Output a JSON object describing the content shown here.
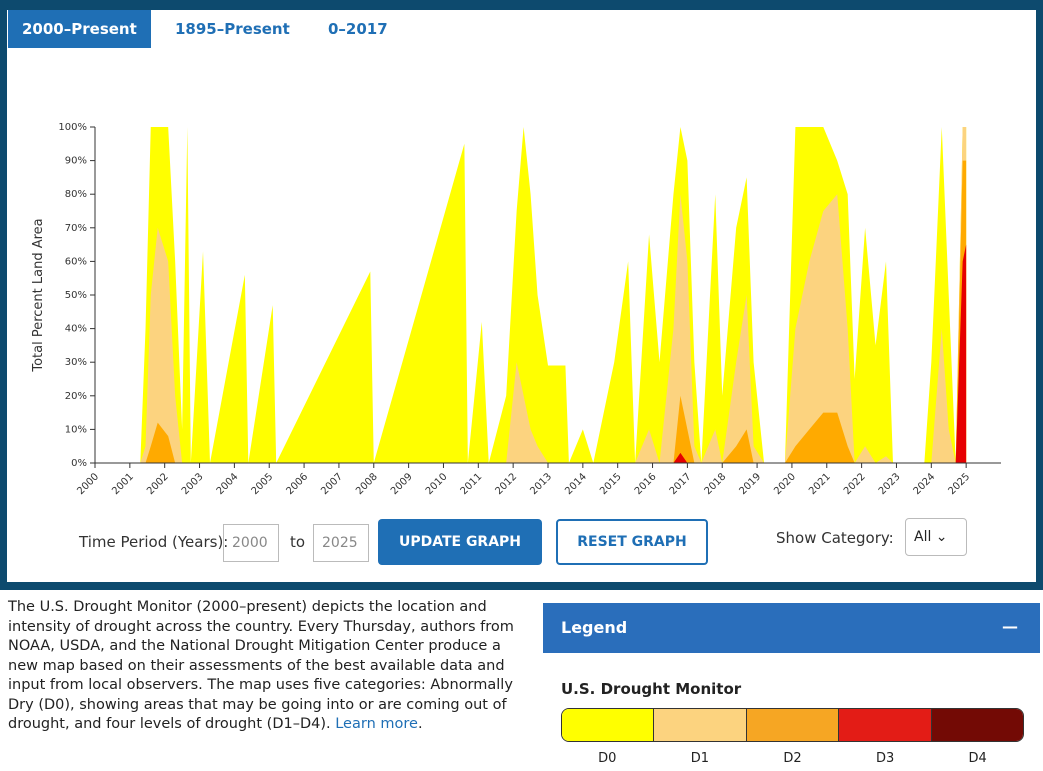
{
  "tabs": [
    "2000–Present",
    "1895–Present",
    "0–2017"
  ],
  "chart_data": {
    "type": "area",
    "y_label": "Total Percent Land Area",
    "xlim": [
      2000,
      2026
    ],
    "xticks": [
      2000,
      2001,
      2002,
      2003,
      2004,
      2005,
      2006,
      2007,
      2008,
      2009,
      2010,
      2011,
      2012,
      2013,
      2014,
      2015,
      2016,
      2017,
      2018,
      2019,
      2020,
      2021,
      2022,
      2023,
      2024,
      2025
    ],
    "ylim": [
      0,
      100
    ],
    "yticks": [
      {
        "value": 0,
        "label": "0%"
      },
      {
        "value": 10,
        "label": "10%"
      },
      {
        "value": 20,
        "label": "20%"
      },
      {
        "value": 30,
        "label": "30%"
      },
      {
        "value": 40,
        "label": "40%"
      },
      {
        "value": 50,
        "label": "50%"
      },
      {
        "value": 60,
        "label": "60%"
      },
      {
        "value": 70,
        "label": "70%"
      },
      {
        "value": 80,
        "label": "80%"
      },
      {
        "value": 90,
        "label": "90%"
      },
      {
        "value": 100,
        "label": "100%"
      }
    ],
    "x": [
      2000.0,
      2001.3,
      2001.45,
      2001.6,
      2001.8,
      2002.1,
      2002.3,
      2002.5,
      2002.65,
      2002.75,
      2003.1,
      2003.3,
      2004.3,
      2004.4,
      2005.1,
      2005.2,
      2007.9,
      2008.0,
      2010.6,
      2010.7,
      2011.1,
      2011.3,
      2011.8,
      2012.1,
      2012.3,
      2012.5,
      2012.7,
      2013.0,
      2013.5,
      2013.6,
      2014.0,
      2014.3,
      2014.9,
      2015.3,
      2015.5,
      2015.9,
      2016.2,
      2016.6,
      2016.8,
      2017.0,
      2017.2,
      2017.4,
      2017.8,
      2018.0,
      2018.4,
      2018.7,
      2018.9,
      2019.2,
      2019.8,
      2020.1,
      2020.5,
      2020.9,
      2021.3,
      2021.6,
      2021.8,
      2022.1,
      2022.4,
      2022.7,
      2022.9,
      2023.8,
      2024.0,
      2024.3,
      2024.5,
      2024.7,
      2024.9,
      2025.0
    ],
    "series": [
      {
        "name": "D0",
        "color": "#ffff00",
        "values": [
          0,
          0,
          40,
          100,
          100,
          100,
          60,
          10,
          100,
          0,
          63,
          0,
          56,
          0,
          47,
          0,
          57,
          0,
          95,
          0,
          42,
          0,
          20,
          75,
          100,
          80,
          50,
          29,
          29,
          0,
          10,
          0,
          30,
          60,
          0,
          68,
          30,
          80,
          100,
          90,
          30,
          0,
          80,
          20,
          70,
          85,
          30,
          0,
          0,
          100,
          100,
          100,
          90,
          80,
          25,
          70,
          35,
          60,
          0,
          0,
          30,
          100,
          50,
          0,
          100,
          100
        ]
      },
      {
        "name": "D1",
        "color": "#fcd37f",
        "values": [
          0,
          0,
          5,
          50,
          70,
          60,
          20,
          0,
          0,
          0,
          0,
          0,
          0,
          0,
          0,
          0,
          0,
          0,
          0,
          0,
          0,
          0,
          0,
          30,
          20,
          10,
          5,
          0,
          0,
          0,
          0,
          0,
          0,
          0,
          0,
          10,
          0,
          40,
          80,
          60,
          5,
          0,
          10,
          0,
          30,
          50,
          5,
          0,
          0,
          40,
          60,
          75,
          80,
          40,
          0,
          5,
          0,
          2,
          0,
          0,
          0,
          40,
          10,
          0,
          100,
          100
        ]
      },
      {
        "name": "D2",
        "color": "#ffaa00",
        "values": [
          0,
          0,
          0,
          5,
          12,
          8,
          0,
          0,
          0,
          0,
          0,
          0,
          0,
          0,
          0,
          0,
          0,
          0,
          0,
          0,
          0,
          0,
          0,
          0,
          0,
          0,
          0,
          0,
          0,
          0,
          0,
          0,
          0,
          0,
          0,
          0,
          0,
          0,
          20,
          10,
          0,
          0,
          0,
          0,
          5,
          10,
          0,
          0,
          0,
          5,
          10,
          15,
          15,
          5,
          0,
          0,
          0,
          0,
          0,
          0,
          0,
          0,
          0,
          0,
          90,
          90
        ]
      },
      {
        "name": "D3",
        "color": "#e60000",
        "values": [
          0,
          0,
          0,
          0,
          0,
          0,
          0,
          0,
          0,
          0,
          0,
          0,
          0,
          0,
          0,
          0,
          0,
          0,
          0,
          0,
          0,
          0,
          0,
          0,
          0,
          0,
          0,
          0,
          0,
          0,
          0,
          0,
          0,
          0,
          0,
          0,
          0,
          0,
          3,
          0,
          0,
          0,
          0,
          0,
          0,
          0,
          0,
          0,
          0,
          0,
          0,
          0,
          0,
          0,
          0,
          0,
          0,
          0,
          0,
          0,
          0,
          0,
          0,
          0,
          60,
          65
        ]
      }
    ]
  },
  "controls": {
    "period_label": "Time Period (Years):",
    "from": "2000",
    "to_label": "to",
    "to": "2025",
    "update": "UPDATE GRAPH",
    "reset": "RESET GRAPH",
    "category_label": "Show Category:",
    "category": "All"
  },
  "description": "The U.S. Drought Monitor (2000–present) depicts the location and intensity of drought across the country. Every Thursday, authors from NOAA, USDA, and the National Drought Mitigation Center produce a new map based on their assessments of the best available data and input from local observers. The map uses five categories: Abnormally Dry (D0), showing areas that may be going into or are coming out of drought, and four levels of drought (D1–D4). ",
  "learn_more": "Learn more",
  "description_end": ".",
  "legend": {
    "header": "Legend",
    "toggle": "—",
    "title": "U.S. Drought Monitor",
    "items": [
      {
        "label": "D0",
        "color": "#ffff00"
      },
      {
        "label": "D1",
        "color": "#fcd37f"
      },
      {
        "label": "D2",
        "color": "#f6a623"
      },
      {
        "label": "D3",
        "color": "#e31c16"
      },
      {
        "label": "D4",
        "color": "#730a05"
      }
    ]
  }
}
